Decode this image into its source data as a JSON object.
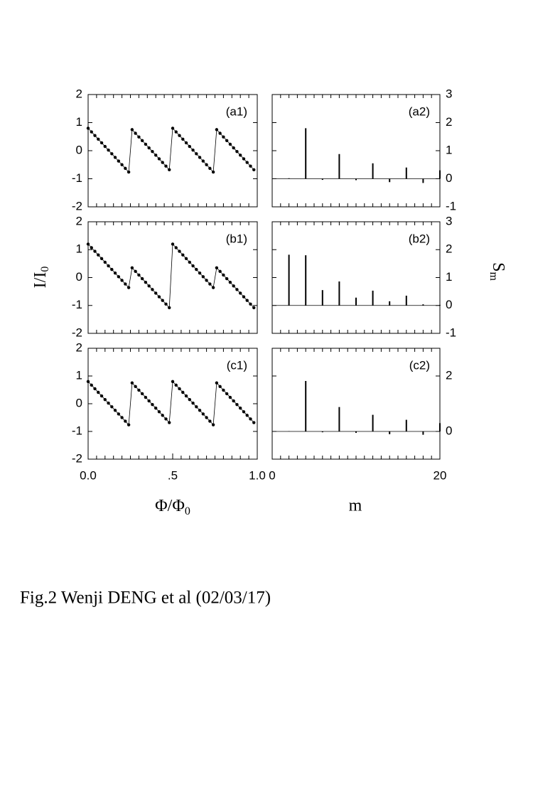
{
  "chart_data": [
    {
      "type": "line",
      "panel_label": "(a1)",
      "color": "#000000",
      "x": [
        0,
        0.02,
        0.04,
        0.06,
        0.08,
        0.1,
        0.12,
        0.14,
        0.16,
        0.18,
        0.2,
        0.22,
        0.24,
        0.26,
        0.28,
        0.3,
        0.32,
        0.34,
        0.36,
        0.38,
        0.4,
        0.42,
        0.44,
        0.46,
        0.48,
        0.5,
        0.52,
        0.54,
        0.56,
        0.58,
        0.6,
        0.62,
        0.64,
        0.66,
        0.68,
        0.7,
        0.72,
        0.74,
        0.76,
        0.78,
        0.8,
        0.82,
        0.84,
        0.86,
        0.88,
        0.9,
        0.92,
        0.94,
        0.96,
        0.98
      ],
      "values": [
        0.8,
        0.67,
        0.54,
        0.41,
        0.28,
        0.15,
        0.02,
        -0.11,
        -0.24,
        -0.37,
        -0.5,
        -0.63,
        -0.76,
        0.75,
        0.62,
        0.49,
        0.36,
        0.23,
        0.1,
        -0.03,
        -0.16,
        -0.29,
        -0.42,
        -0.55,
        -0.68,
        0.8,
        0.67,
        0.54,
        0.41,
        0.28,
        0.15,
        0.02,
        -0.11,
        -0.24,
        -0.37,
        -0.5,
        -0.63,
        -0.76,
        0.75,
        0.62,
        0.49,
        0.36,
        0.23,
        0.1,
        -0.03,
        -0.16,
        -0.29,
        -0.42,
        -0.55,
        -0.68
      ],
      "xlim": [
        0,
        1
      ],
      "ylim": [
        -2,
        2
      ],
      "yticks": [
        -2,
        -1,
        0,
        1,
        2
      ],
      "xminorticks": [
        0,
        0.05,
        0.1,
        0.15,
        0.2,
        0.25,
        0.3,
        0.35,
        0.4,
        0.45,
        0.5,
        0.55,
        0.6,
        0.65,
        0.7,
        0.75,
        0.8,
        0.85,
        0.9,
        0.95,
        1
      ],
      "yaxis_side": "left"
    },
    {
      "type": "stem",
      "panel_label": "(a2)",
      "color": "#000000",
      "x": [
        2,
        4,
        6,
        8,
        10,
        12,
        14,
        16,
        18,
        20
      ],
      "values": [
        0.02,
        1.8,
        -0.04,
        0.88,
        -0.05,
        0.55,
        -0.12,
        0.4,
        -0.15,
        0.3
      ],
      "xlim": [
        0,
        20
      ],
      "ylim": [
        -1,
        3
      ],
      "yticks": [
        -1,
        0,
        1,
        2,
        3
      ],
      "xminorticks": [
        0,
        1,
        2,
        3,
        4,
        5,
        6,
        7,
        8,
        9,
        10,
        11,
        12,
        13,
        14,
        15,
        16,
        17,
        18,
        19,
        20
      ],
      "yaxis_side": "right"
    },
    {
      "type": "line",
      "panel_label": "(b1)",
      "color": "#000000",
      "x": [
        0,
        0.02,
        0.04,
        0.06,
        0.08,
        0.1,
        0.12,
        0.14,
        0.16,
        0.18,
        0.2,
        0.22,
        0.24,
        0.26,
        0.28,
        0.3,
        0.32,
        0.34,
        0.36,
        0.38,
        0.4,
        0.42,
        0.44,
        0.46,
        0.48,
        0.5,
        0.52,
        0.54,
        0.56,
        0.58,
        0.6,
        0.62,
        0.64,
        0.66,
        0.68,
        0.7,
        0.72,
        0.74,
        0.76,
        0.78,
        0.8,
        0.82,
        0.84,
        0.86,
        0.88,
        0.9,
        0.92,
        0.94,
        0.96,
        0.98
      ],
      "values": [
        1.2,
        1.07,
        0.94,
        0.81,
        0.68,
        0.55,
        0.42,
        0.29,
        0.16,
        0.03,
        -0.1,
        -0.23,
        -0.36,
        0.35,
        0.22,
        0.09,
        -0.04,
        -0.17,
        -0.3,
        -0.43,
        -0.56,
        -0.69,
        -0.82,
        -0.95,
        -1.08,
        1.2,
        1.07,
        0.94,
        0.81,
        0.68,
        0.55,
        0.42,
        0.29,
        0.16,
        0.03,
        -0.1,
        -0.23,
        -0.36,
        0.35,
        0.22,
        0.09,
        -0.04,
        -0.17,
        -0.3,
        -0.43,
        -0.56,
        -0.69,
        -0.82,
        -0.95,
        -1.08
      ],
      "xlim": [
        0,
        1
      ],
      "ylim": [
        -2,
        2
      ],
      "yticks": [
        -2,
        -1,
        0,
        1,
        2
      ],
      "xminorticks": [
        0,
        0.05,
        0.1,
        0.15,
        0.2,
        0.25,
        0.3,
        0.35,
        0.4,
        0.45,
        0.5,
        0.55,
        0.6,
        0.65,
        0.7,
        0.75,
        0.8,
        0.85,
        0.9,
        0.95,
        1
      ],
      "yaxis_side": "left"
    },
    {
      "type": "stem",
      "panel_label": "(b2)",
      "color": "#000000",
      "x": [
        2,
        4,
        6,
        8,
        10,
        12,
        14,
        16,
        18,
        20
      ],
      "values": [
        1.82,
        1.8,
        0.55,
        0.86,
        0.28,
        0.53,
        0.15,
        0.35,
        0.04,
        0.02
      ],
      "xlim": [
        0,
        20
      ],
      "ylim": [
        -1,
        3
      ],
      "yticks": [
        -1,
        0,
        1,
        2,
        3
      ],
      "xminorticks": [
        0,
        1,
        2,
        3,
        4,
        5,
        6,
        7,
        8,
        9,
        10,
        11,
        12,
        13,
        14,
        15,
        16,
        17,
        18,
        19,
        20
      ],
      "yaxis_side": "right"
    },
    {
      "type": "line",
      "panel_label": "(c1)",
      "color": "#000000",
      "x": [
        0,
        0.02,
        0.04,
        0.06,
        0.08,
        0.1,
        0.12,
        0.14,
        0.16,
        0.18,
        0.2,
        0.22,
        0.24,
        0.26,
        0.28,
        0.3,
        0.32,
        0.34,
        0.36,
        0.38,
        0.4,
        0.42,
        0.44,
        0.46,
        0.48,
        0.5,
        0.52,
        0.54,
        0.56,
        0.58,
        0.6,
        0.62,
        0.64,
        0.66,
        0.68,
        0.7,
        0.72,
        0.74,
        0.76,
        0.78,
        0.8,
        0.82,
        0.84,
        0.86,
        0.88,
        0.9,
        0.92,
        0.94,
        0.96,
        0.98
      ],
      "values": [
        0.8,
        0.67,
        0.54,
        0.41,
        0.28,
        0.15,
        0.02,
        -0.11,
        -0.24,
        -0.37,
        -0.5,
        -0.63,
        -0.76,
        0.75,
        0.62,
        0.49,
        0.36,
        0.23,
        0.1,
        -0.03,
        -0.16,
        -0.29,
        -0.42,
        -0.55,
        -0.68,
        0.8,
        0.67,
        0.54,
        0.41,
        0.28,
        0.15,
        0.02,
        -0.11,
        -0.24,
        -0.37,
        -0.5,
        -0.63,
        -0.76,
        0.75,
        0.62,
        0.49,
        0.36,
        0.23,
        0.1,
        -0.03,
        -0.16,
        -0.29,
        -0.42,
        -0.55,
        -0.68
      ],
      "xlim": [
        0,
        1
      ],
      "ylim": [
        -2,
        2
      ],
      "yticks": [
        -2,
        -1,
        0,
        1,
        2
      ],
      "xticks": [
        {
          "value": 0,
          "label": "0.0"
        },
        {
          "value": 0.5,
          "label": ".5"
        },
        {
          "value": 1,
          "label": "1.0"
        }
      ],
      "xminorticks": [
        0,
        0.05,
        0.1,
        0.15,
        0.2,
        0.25,
        0.3,
        0.35,
        0.4,
        0.45,
        0.5,
        0.55,
        0.6,
        0.65,
        0.7,
        0.75,
        0.8,
        0.85,
        0.9,
        0.95,
        1
      ],
      "yaxis_side": "left"
    },
    {
      "type": "stem",
      "panel_label": "(c2)",
      "color": "#000000",
      "x": [
        2,
        4,
        6,
        8,
        10,
        12,
        14,
        16,
        18,
        20
      ],
      "values": [
        0.01,
        1.82,
        -0.03,
        0.88,
        -0.05,
        0.6,
        -0.1,
        0.42,
        -0.12,
        0.3
      ],
      "xlim": [
        0,
        20
      ],
      "ylim": [
        -1,
        3
      ],
      "yticks": [
        0,
        2
      ],
      "xticks": [
        0,
        20
      ],
      "xminorticks": [
        0,
        1,
        2,
        3,
        4,
        5,
        6,
        7,
        8,
        9,
        10,
        11,
        12,
        13,
        14,
        15,
        16,
        17,
        18,
        19,
        20
      ],
      "yaxis_side": "right"
    }
  ],
  "figure": {
    "ylabel_left": {
      "text": "I/I",
      "sub": "0"
    },
    "ylabel_right": {
      "text": "S",
      "sub": "m"
    },
    "xlabel_left": {
      "text": "Φ/Φ",
      "sub": "0"
    },
    "xlabel_right": "m",
    "caption": "Fig.2 Wenji DENG et al (02/03/17)"
  }
}
